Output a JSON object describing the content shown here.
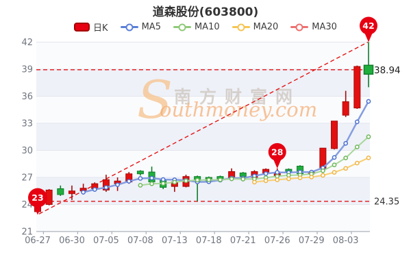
{
  "title": "道森股份(603800)",
  "legend": {
    "items": [
      {
        "label": "日K",
        "type": "candle",
        "color": "#e60012",
        "border": "#a50000"
      },
      {
        "label": "MA5",
        "type": "line",
        "color": "#5b7fd9"
      },
      {
        "label": "MA10",
        "type": "line",
        "color": "#8fca78"
      },
      {
        "label": "MA20",
        "type": "line",
        "color": "#f6c554"
      },
      {
        "label": "MA30",
        "type": "line",
        "color": "#ee7070"
      }
    ]
  },
  "watermark": {
    "s": "S",
    "cn": "南方财富网",
    "en": "outhmoney.com"
  },
  "colors": {
    "candle_up_fill": "#e21010",
    "candle_up_stroke": "#a80a0a",
    "candle_down_fill": "#1fae3d",
    "candle_down_stroke": "#0f7d2a",
    "grid_line": "#e3e5ed",
    "band_light": "#fafbfd",
    "band_dark": "#eef1f8",
    "axis_line": "#9aa0ab",
    "axis_label": "#70757f",
    "dashed_red": "#e41414",
    "balloon": "#e60012",
    "price_label_color": "#1d1d1d"
  },
  "chart_data": {
    "type": "candlestick",
    "title": "道森股份(603800)",
    "ylim": [
      21,
      42
    ],
    "y_ticks": [
      21,
      24,
      27,
      30,
      33,
      36,
      39,
      42
    ],
    "grid": true,
    "legend_position": "top",
    "dates": [
      "06-27",
      "06-28",
      "06-29",
      "06-30",
      "07-01",
      "07-04",
      "07-05",
      "07-06",
      "07-07",
      "07-08",
      "07-11",
      "07-12",
      "07-13",
      "07-14",
      "07-15",
      "07-18",
      "07-19",
      "07-20",
      "07-21",
      "07-22",
      "07-25",
      "07-26",
      "07-27",
      "07-28",
      "07-29",
      "08-01",
      "08-02",
      "08-03",
      "08-04",
      "08-05"
    ],
    "x_tick_indices": [
      0,
      3,
      6,
      9,
      12,
      15,
      18,
      21,
      24,
      27
    ],
    "x_tick_labels": [
      "06-27",
      "06-30",
      "07-05",
      "07-08",
      "07-13",
      "07-18",
      "07-21",
      "07-26",
      "07-29",
      "08-03"
    ],
    "candles_ohlc_note": "[open, close, low, high] ; red = close>=open (CN convention)",
    "candles": [
      [
        23.2,
        24.8,
        23.0,
        25.0
      ],
      [
        24.0,
        25.6,
        23.9,
        25.7
      ],
      [
        25.75,
        25.1,
        24.95,
        26.1
      ],
      [
        25.2,
        25.5,
        24.5,
        26.1
      ],
      [
        25.5,
        25.8,
        25.1,
        26.3
      ],
      [
        25.75,
        26.3,
        25.5,
        26.45
      ],
      [
        25.6,
        26.75,
        25.4,
        27.3
      ],
      [
        26.3,
        26.6,
        25.5,
        27.0
      ],
      [
        26.5,
        27.4,
        26.3,
        27.6
      ],
      [
        27.7,
        27.4,
        27.2,
        27.8
      ],
      [
        27.6,
        26.5,
        26.3,
        28.2
      ],
      [
        26.75,
        25.9,
        25.7,
        26.9
      ],
      [
        26.0,
        26.5,
        25.4,
        26.7
      ],
      [
        26.0,
        27.1,
        25.9,
        27.3
      ],
      [
        27.1,
        26.5,
        24.35,
        27.2
      ],
      [
        27.0,
        26.6,
        26.4,
        27.1
      ],
      [
        27.1,
        26.8,
        26.6,
        27.2
      ],
      [
        26.9,
        27.65,
        26.7,
        28.0
      ],
      [
        27.5,
        27.1,
        26.9,
        27.6
      ],
      [
        27.0,
        27.65,
        26.85,
        27.8
      ],
      [
        27.45,
        27.9,
        27.3,
        28.0
      ],
      [
        27.2,
        27.5,
        27.0,
        28.0
      ],
      [
        27.9,
        27.55,
        27.4,
        28.0
      ],
      [
        28.25,
        27.4,
        27.3,
        28.35
      ],
      [
        27.4,
        27.6,
        27.2,
        27.75
      ],
      [
        28.0,
        30.25,
        27.9,
        30.25
      ],
      [
        30.2,
        33.25,
        30.1,
        33.25
      ],
      [
        33.9,
        35.4,
        33.7,
        36.6
      ],
      [
        34.7,
        39.3,
        34.6,
        39.4
      ],
      [
        39.3,
        38.94,
        37.0,
        42.0
      ]
    ],
    "series": [
      {
        "name": "MA5",
        "start_index": 4,
        "values": [
          25.36,
          25.66,
          25.89,
          26.19,
          26.57,
          26.89,
          26.93,
          26.76,
          26.74,
          26.68,
          26.5,
          26.52,
          26.7,
          26.93,
          26.93,
          27.16,
          27.42,
          27.56,
          27.54,
          27.6,
          27.59,
          28.06,
          29.21,
          30.78,
          33.16,
          35.43
        ]
      },
      {
        "name": "MA10",
        "start_index": 9,
        "values": [
          26.13,
          26.3,
          26.33,
          26.47,
          26.63,
          26.7,
          26.73,
          26.73,
          26.84,
          26.81,
          26.83,
          26.97,
          27.13,
          27.24,
          27.27,
          27.38,
          27.74,
          28.39,
          29.16,
          30.38,
          31.51
        ]
      },
      {
        "name": "MA20",
        "start_index": 19,
        "values": [
          26.48,
          26.63,
          26.73,
          26.85,
          26.95,
          27.04,
          27.23,
          27.56,
          28.0,
          28.59,
          29.17
        ]
      },
      {
        "name": "MA30",
        "start_index": 29,
        "values": []
      }
    ],
    "ma_styles": [
      {
        "name": "MA5",
        "line": "#849ce0",
        "marker": "#4a6fd0",
        "width": 2.5
      },
      {
        "name": "MA10",
        "line": "#a8d79a",
        "marker": "#6cb757",
        "width": 2
      },
      {
        "name": "MA20",
        "line": "#f8cf72",
        "marker": "#f0b443",
        "width": 2
      }
    ],
    "balloons": [
      {
        "label": "23",
        "index": 0,
        "value": 23.0
      },
      {
        "label": "28",
        "index": 21,
        "value": 28.0
      },
      {
        "label": "42",
        "index": 29,
        "value": 42.0
      }
    ],
    "hlines": [
      {
        "value": 38.94,
        "label": ""
      },
      {
        "value": 24.35,
        "label": "24.35"
      }
    ],
    "trendline": {
      "from_index": 0,
      "from_value": 22.95,
      "to_index": 29,
      "to_value": 42.0
    },
    "price_marker": {
      "index": 29,
      "value": 38.94,
      "label": "38.94"
    }
  }
}
